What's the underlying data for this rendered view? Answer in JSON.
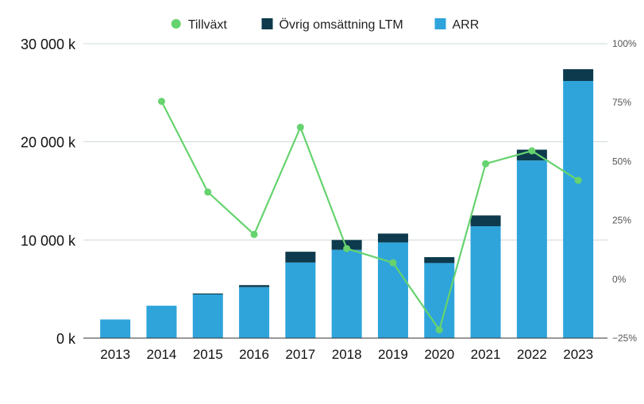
{
  "chart_data": {
    "type": "bar",
    "categories": [
      "2013",
      "2014",
      "2015",
      "2016",
      "2017",
      "2018",
      "2019",
      "2020",
      "2021",
      "2022",
      "2023"
    ],
    "series": [
      {
        "name": "ARR",
        "kind": "bar",
        "axis": "left",
        "color": "#2ea4db",
        "values": [
          1900,
          3300,
          4450,
          5200,
          7700,
          9000,
          9750,
          7650,
          11400,
          18100,
          26200
        ]
      },
      {
        "name": "Övrig omsättning LTM",
        "kind": "bar-stacked",
        "axis": "left",
        "color": "#0d3a4c",
        "values": [
          0,
          0,
          100,
          200,
          1100,
          1000,
          900,
          600,
          1100,
          1100,
          1200
        ]
      },
      {
        "name": "Tillväxt",
        "kind": "line",
        "axis": "right",
        "color": "#66d36e",
        "values": [
          null,
          75.5,
          37,
          19,
          64.5,
          13,
          7,
          -21.5,
          49,
          54.5,
          42
        ]
      }
    ],
    "legend": {
      "placement": "top-center",
      "items": [
        {
          "label": "Tillväxt",
          "marker": "circle",
          "color": "#66d36e"
        },
        {
          "label": "Övrig omsättning LTM",
          "marker": "square",
          "color": "#0d3a4c"
        },
        {
          "label": "ARR",
          "marker": "square",
          "color": "#2ea4db"
        }
      ]
    },
    "y_left": {
      "lim": [
        0,
        30000
      ],
      "ticks": [
        0,
        10000,
        20000,
        30000
      ],
      "tick_labels": [
        "0 k",
        "10 000 k",
        "20 000 k",
        "30 000 k"
      ]
    },
    "y_right": {
      "lim": [
        -25,
        100
      ],
      "ticks": [
        -25,
        0,
        25,
        50,
        75,
        100
      ],
      "tick_labels": [
        "−25%",
        "0%",
        "25%",
        "50%",
        "75%",
        "100%"
      ]
    },
    "grid": true,
    "grid_color": "#cfd8dc",
    "axis_color": "#333333"
  }
}
